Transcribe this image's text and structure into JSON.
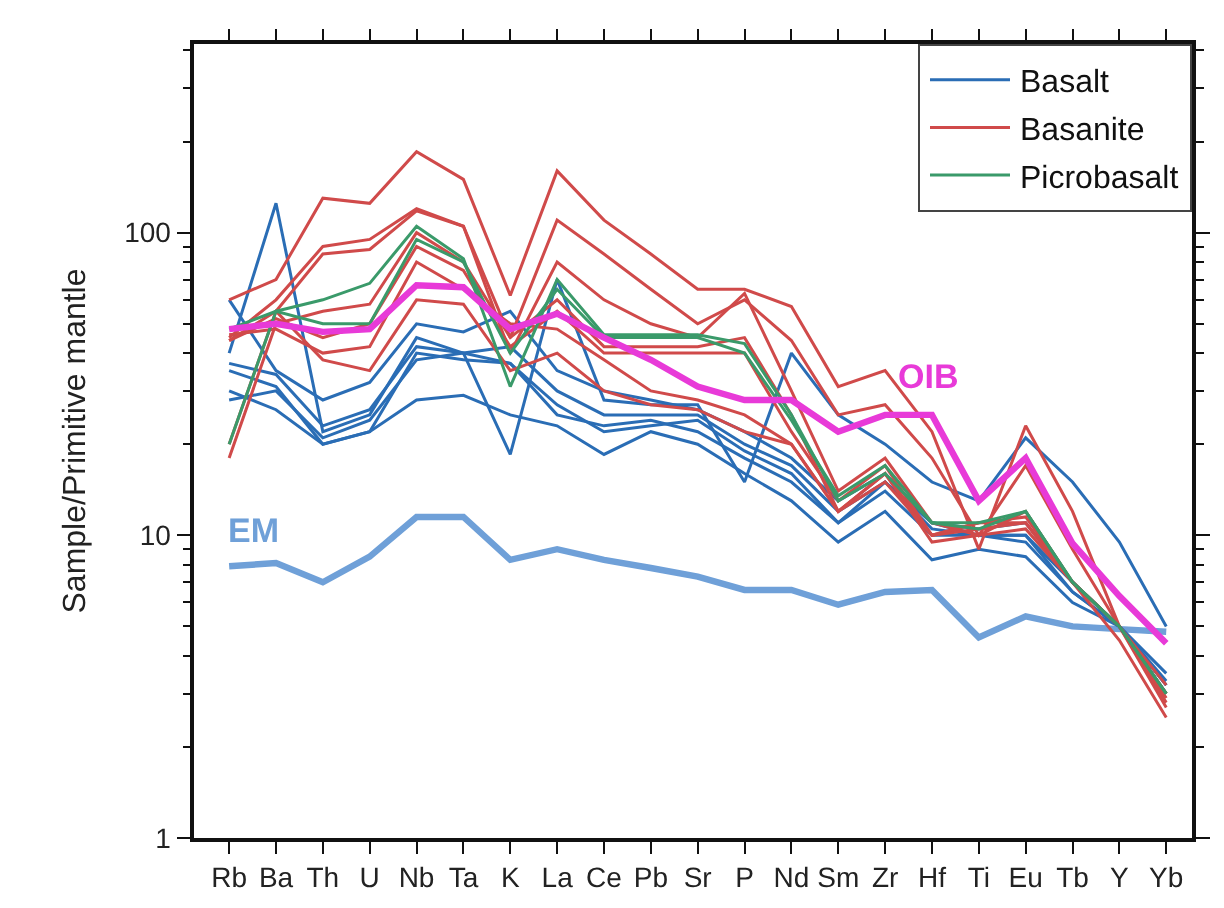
{
  "chart_data": {
    "type": "line",
    "ylabel": "Sample/Primitive mantle",
    "log": true,
    "legend": "top right",
    "marker": "none",
    "line_style": "solid",
    "categories": [
      "Rb",
      "Ba",
      "Th",
      "U",
      "Nb",
      "Ta",
      "K",
      "La",
      "Ce",
      "Pb",
      "Sr",
      "P",
      "Nd",
      "Sm",
      "Zr",
      "Hf",
      "Ti",
      "Eu",
      "Tb",
      "Y",
      "Yb"
    ],
    "ylim": [
      1,
      420
    ],
    "yticks": [
      1,
      {
        "value": 2,
        "label": null
      },
      {
        "value": 3,
        "label": null
      },
      {
        "value": 4,
        "label": null
      },
      {
        "value": 5,
        "label": null
      },
      {
        "value": 6,
        "label": null
      },
      {
        "value": 7,
        "label": null
      },
      {
        "value": 8,
        "label": null
      },
      {
        "value": 9,
        "label": null
      },
      10,
      {
        "value": 20,
        "label": null
      },
      {
        "value": 30,
        "label": null
      },
      {
        "value": 40,
        "label": null
      },
      {
        "value": 50,
        "label": null
      },
      {
        "value": 60,
        "label": null
      },
      {
        "value": 70,
        "label": null
      },
      {
        "value": 80,
        "label": null
      },
      {
        "value": 90,
        "label": null
      },
      100,
      {
        "value": 200,
        "label": null
      },
      {
        "value": 300,
        "label": null
      },
      {
        "value": 400,
        "label": null
      }
    ],
    "series": [
      {
        "name": "EM",
        "color": "#6fa0d8",
        "values": [
          7.9,
          8.1,
          7,
          8.5,
          11.5,
          11.5,
          8.3,
          9,
          8.3,
          7.8,
          7.3,
          6.6,
          6.6,
          5.9,
          6.5,
          6.6,
          4.6,
          5.4,
          5,
          4.9,
          4.8
        ]
      },
      {
        "name": "Basalt",
        "color": "#2a6db5",
        "values": [
          40,
          125,
          22,
          25,
          45,
          40,
          18.5,
          70,
          28,
          27,
          27,
          15,
          40,
          25,
          20,
          15,
          13,
          21,
          15,
          9.5,
          5
        ]
      },
      {
        "color": "#2a6db5",
        "values": [
          60,
          35,
          28,
          32,
          50,
          47,
          55,
          35,
          30,
          28,
          26,
          22,
          18,
          13,
          16,
          11,
          10.5,
          11,
          7,
          5,
          3.5
        ]
      },
      {
        "color": "#2a6db5",
        "values": [
          37,
          34,
          23,
          26,
          42,
          40,
          42,
          30,
          25,
          25,
          25,
          20,
          17,
          12,
          15,
          11,
          10,
          10,
          7,
          5,
          3.2
        ]
      },
      {
        "color": "#2a6db5",
        "values": [
          35,
          31,
          20,
          22,
          40,
          38,
          37,
          27,
          22,
          23,
          24,
          19,
          16,
          11,
          15,
          10.5,
          10,
          10,
          6.5,
          5,
          3.2
        ]
      },
      {
        "color": "#2a6db5",
        "values": [
          28,
          30,
          21,
          24,
          38,
          40,
          37,
          25,
          23,
          24,
          22,
          18,
          15,
          11,
          14,
          10,
          10,
          9.5,
          6.5,
          5,
          3
        ]
      },
      {
        "color": "#2a6db5",
        "values": [
          30,
          26,
          20,
          22,
          28,
          29,
          25,
          23,
          18.5,
          22,
          20,
          16,
          13,
          9.5,
          12,
          8.3,
          9,
          8.5,
          6,
          5,
          3.3
        ]
      },
      {
        "name": "Basanite",
        "color": "#d04a4a",
        "values": [
          60,
          70,
          130,
          125,
          185,
          150,
          62,
          160,
          110,
          85,
          65,
          65,
          57,
          31,
          35,
          22,
          9,
          23,
          12,
          5,
          3
        ]
      },
      {
        "color": "#d04a4a",
        "values": [
          45,
          60,
          90,
          95,
          120,
          105,
          45,
          110,
          85,
          65,
          50,
          60,
          44,
          25,
          27,
          18,
          10,
          17,
          9,
          5,
          2.7
        ]
      },
      {
        "color": "#d04a4a",
        "values": [
          20,
          55,
          85,
          88,
          118,
          105,
          40,
          80,
          60,
          50,
          45,
          63,
          30,
          14,
          18,
          11,
          10,
          12,
          7,
          5,
          3
        ]
      },
      {
        "color": "#d04a4a",
        "values": [
          18,
          50,
          55,
          58,
          100,
          80,
          45,
          60,
          42,
          42,
          42,
          45,
          25,
          12,
          16,
          10,
          11,
          11,
          7,
          4.5,
          2.5
        ]
      },
      {
        "color": "#d04a4a",
        "values": [
          44,
          52,
          45,
          50,
          90,
          75,
          42,
          55,
          40,
          40,
          40,
          40,
          22,
          13,
          17,
          10,
          10.5,
          11,
          7,
          5,
          3.2
        ]
      },
      {
        "color": "#d04a4a",
        "values": [
          46,
          48,
          40,
          42,
          80,
          65,
          50,
          48,
          38,
          30,
          28,
          25,
          20,
          12,
          16,
          9.5,
          10,
          10.5,
          7,
          5,
          2.8
        ]
      },
      {
        "color": "#d04a4a",
        "values": [
          44,
          55,
          38,
          35,
          60,
          58,
          35,
          40,
          30,
          27,
          26,
          22,
          20,
          12,
          15,
          10,
          11,
          11.5,
          7,
          5,
          2.9
        ]
      },
      {
        "name": "Picrobasalt",
        "color": "#3a9a6a",
        "values": [
          48,
          55,
          60,
          68,
          105,
          82,
          31,
          70,
          46,
          46,
          46,
          43,
          25,
          13,
          16,
          11,
          11,
          12,
          7,
          5,
          3
        ]
      },
      {
        "color": "#3a9a6a",
        "values": [
          20,
          55,
          50,
          50,
          95,
          80,
          40,
          65,
          45,
          45,
          45,
          40,
          24,
          13.5,
          17,
          11,
          10.5,
          12,
          7,
          5,
          3
        ]
      },
      {
        "name": "OIB",
        "color": "#e83ad8",
        "values": [
          48,
          50,
          47,
          48,
          67,
          66,
          48,
          54,
          45,
          38,
          31,
          28,
          28,
          22,
          25,
          25,
          13,
          18,
          9.4,
          6.3,
          4.4
        ]
      }
    ]
  }
}
